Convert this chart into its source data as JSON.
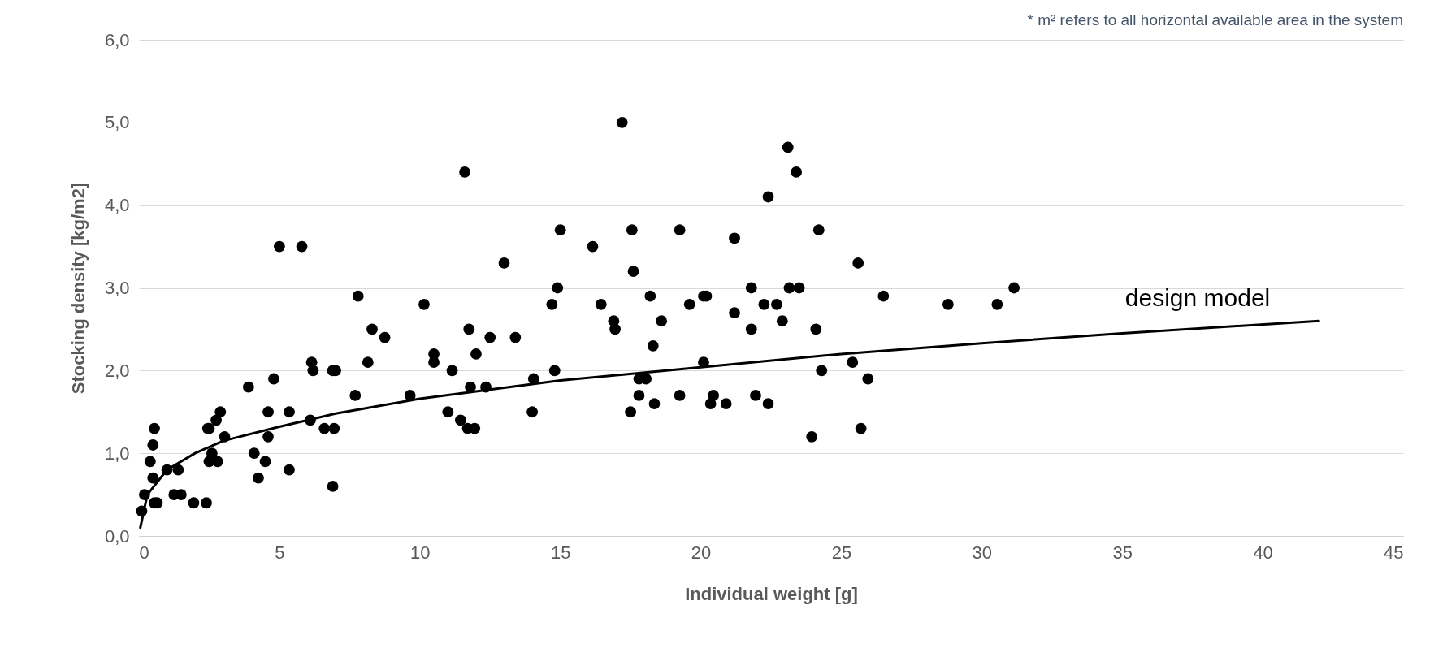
{
  "chart_data": {
    "type": "scatter",
    "xlabel": "Individual weight [g]",
    "ylabel": "Stocking density [kg/m2]",
    "xlim": [
      0,
      45
    ],
    "xticks": [
      0,
      5,
      10,
      15,
      20,
      25,
      30,
      35,
      40,
      45
    ],
    "ylim": [
      0,
      6
    ],
    "yticks": [
      {
        "value": 0,
        "label": "0,0"
      },
      {
        "value": 1,
        "label": "1,0"
      },
      {
        "value": 2,
        "label": "2,0"
      },
      {
        "value": 3,
        "label": "3,0"
      },
      {
        "value": 4,
        "label": "4,0"
      },
      {
        "value": 5,
        "label": "5,0"
      },
      {
        "value": 6,
        "label": "6,0"
      }
    ],
    "grid": "y",
    "marker": "circle",
    "series": [
      {
        "type": "scatter",
        "color": "#000000",
        "x": [
          0.1,
          0.2,
          0.4,
          0.5,
          0.5,
          0.55,
          0.55,
          0.65,
          1.0,
          1.25,
          1.4,
          1.5,
          1.95,
          2.4,
          2.45,
          2.5,
          2.5,
          2.6,
          2.75,
          2.8,
          2.9,
          3.05,
          3.9,
          4.1,
          4.25,
          4.5,
          4.6,
          4.6,
          4.8,
          5.0,
          5.35,
          5.35,
          5.8,
          6.15,
          6.2,
          6.1,
          6.6,
          6.9,
          7.0,
          6.95,
          6.9,
          7.8,
          7.7,
          8.15,
          8.3,
          8.75,
          9.65,
          10.15,
          10.5,
          10.5,
          11.0,
          11.15,
          11.45,
          11.6,
          11.75,
          11.8,
          11.7,
          11.95,
          12.0,
          12.35,
          12.5,
          13.0,
          13.4,
          14.0,
          14.05,
          14.7,
          14.8,
          14.9,
          15.0,
          16.15,
          16.45,
          16.9,
          16.95,
          17.2,
          17.5,
          17.55,
          17.6,
          17.8,
          17.8,
          18.05,
          18.2,
          18.3,
          18.35,
          18.6,
          19.25,
          19.25,
          19.6,
          20.1,
          20.2,
          20.1,
          20.35,
          20.45,
          20.9,
          21.2,
          21.2,
          21.8,
          21.8,
          21.95,
          22.25,
          22.4,
          22.4,
          22.7,
          22.9,
          23.1,
          23.15,
          23.4,
          23.5,
          23.95,
          24.1,
          24.2,
          24.3,
          25.4,
          25.6,
          25.7,
          25.95,
          26.5,
          28.8,
          30.55,
          31.15
        ],
        "values": [
          0.3,
          0.5,
          0.9,
          1.1,
          0.7,
          1.3,
          0.4,
          0.4,
          0.8,
          0.5,
          0.8,
          0.5,
          0.4,
          0.4,
          1.3,
          1.3,
          0.9,
          1.0,
          1.4,
          0.9,
          1.5,
          1.2,
          1.8,
          1.0,
          0.7,
          0.9,
          1.5,
          1.2,
          1.9,
          3.5,
          1.5,
          0.8,
          3.5,
          2.1,
          2.0,
          1.4,
          1.3,
          2.0,
          2.0,
          1.3,
          0.6,
          2.9,
          1.7,
          2.1,
          2.5,
          2.4,
          1.7,
          2.8,
          2.2,
          2.1,
          1.5,
          2.0,
          1.4,
          4.4,
          2.5,
          1.8,
          1.3,
          1.3,
          2.2,
          1.8,
          2.4,
          3.3,
          2.4,
          1.5,
          1.9,
          2.8,
          2.0,
          3.0,
          3.7,
          3.5,
          2.8,
          2.6,
          2.5,
          5.0,
          1.5,
          3.7,
          3.2,
          1.9,
          1.7,
          1.9,
          2.9,
          2.3,
          1.6,
          2.6,
          3.7,
          1.7,
          2.8,
          2.9,
          2.9,
          2.1,
          1.6,
          1.7,
          1.6,
          3.6,
          2.7,
          3.0,
          2.5,
          1.7,
          2.8,
          4.1,
          1.6,
          2.8,
          2.6,
          4.7,
          3.0,
          4.4,
          3.0,
          1.2,
          2.5,
          3.7,
          2.0,
          2.1,
          3.3,
          1.3,
          1.9,
          2.9,
          2.8,
          2.8,
          3.0
        ]
      },
      {
        "type": "line",
        "color": "#000000",
        "marker": "none",
        "line_style": "solid",
        "x": [
          0.05,
          0.3,
          1,
          2,
          3,
          5,
          7,
          10,
          15,
          20,
          25,
          30,
          35,
          42
        ],
        "values": [
          0.1,
          0.5,
          0.8,
          1.0,
          1.15,
          1.32,
          1.48,
          1.66,
          1.88,
          2.04,
          2.2,
          2.33,
          2.45,
          2.6
        ]
      }
    ],
    "annotations": [
      "design model",
      "* m² refers to all horizontal available area in the system"
    ]
  }
}
